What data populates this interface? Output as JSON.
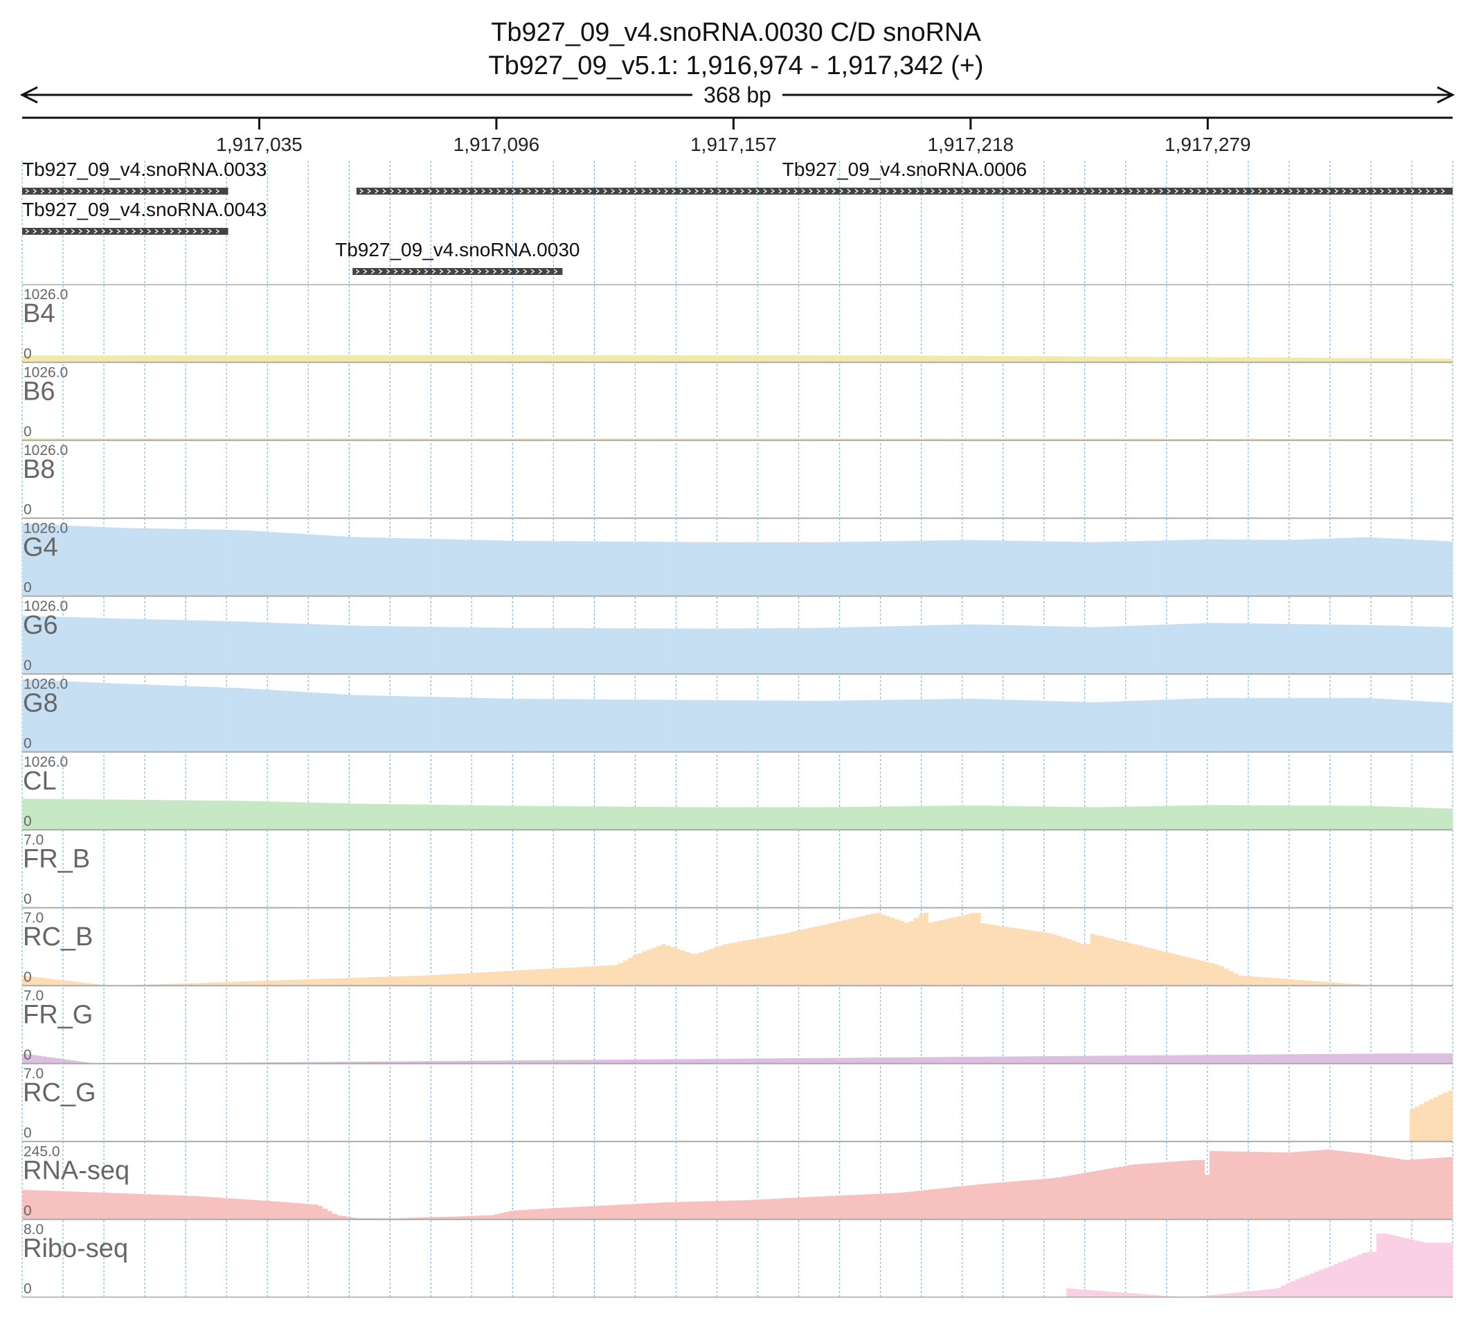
{
  "title": {
    "line1": "Tb927_09_v4.snoRNA.0030  C/D snoRNA",
    "line2": "Tb927_09_v5.1: 1,916,974 - 1,917,342 (+)"
  },
  "span_label": "368 bp",
  "colors": {
    "axis": "#111111",
    "gridline": "#5b9bd5",
    "track_separator": "#aaaaaa",
    "gene_fill": "#444444",
    "yellow": "#f3e9a6",
    "blue": "#c6dff3",
    "green": "#c7e8c4",
    "orange": "#fdddb5",
    "purple": "#dcc0e0",
    "red": "#f7c1c0",
    "pink": "#fad0e4"
  },
  "chart_data": {
    "type": "genome-browser-coverage",
    "region": {
      "start": 1916974,
      "end": 1917342,
      "strand": "+"
    },
    "ticks": [
      {
        "pos": 1917035,
        "label": "1,917,035"
      },
      {
        "pos": 1917096,
        "label": "1,917,096"
      },
      {
        "pos": 1917157,
        "label": "1,917,157"
      },
      {
        "pos": 1917218,
        "label": "1,917,218"
      },
      {
        "pos": 1917279,
        "label": "1,917,279"
      }
    ],
    "genes": [
      {
        "name": "Tb927_09_v4.snoRNA.0033",
        "start": 1916974,
        "end": 1917027,
        "row": 0,
        "label_align": "start"
      },
      {
        "name": "Tb927_09_v4.snoRNA.0006",
        "start": 1917060,
        "end": 1917342,
        "row": 0,
        "label_align": "middle"
      },
      {
        "name": "Tb927_09_v4.snoRNA.0043",
        "start": 1916974,
        "end": 1917027,
        "row": 1,
        "label_align": "start"
      },
      {
        "name": "Tb927_09_v4.snoRNA.0030",
        "start": 1917059,
        "end": 1917113,
        "row": 2,
        "label_align": "middle"
      }
    ],
    "tracks": [
      {
        "name": "B4",
        "max": "1026.0",
        "min": "0",
        "ymax": 1026,
        "color": "yellow",
        "points": [
          [
            1916974,
            100
          ],
          [
            1917100,
            105
          ],
          [
            1917200,
            100
          ],
          [
            1917300,
            70
          ],
          [
            1917342,
            55
          ]
        ]
      },
      {
        "name": "B6",
        "max": "1026.0",
        "min": "0",
        "ymax": 1026,
        "color": "yellow",
        "points": [
          [
            1916974,
            30
          ],
          [
            1917342,
            22
          ]
        ]
      },
      {
        "name": "B8",
        "max": "1026.0",
        "min": "0",
        "ymax": 1026,
        "color": "yellow",
        "points": [
          [
            1916974,
            12
          ],
          [
            1917342,
            10
          ]
        ]
      },
      {
        "name": "G4",
        "max": "1026.0",
        "min": "0",
        "ymax": 1026,
        "color": "blue",
        "points": [
          [
            1916974,
            1020
          ],
          [
            1917000,
            960
          ],
          [
            1917030,
            930
          ],
          [
            1917060,
            830
          ],
          [
            1917100,
            780
          ],
          [
            1917150,
            760
          ],
          [
            1917180,
            760
          ],
          [
            1917218,
            790
          ],
          [
            1917250,
            760
          ],
          [
            1917280,
            800
          ],
          [
            1917300,
            790
          ],
          [
            1917320,
            830
          ],
          [
            1917342,
            770
          ]
        ]
      },
      {
        "name": "G6",
        "max": "1026.0",
        "min": "0",
        "ymax": 1026,
        "color": "blue",
        "points": [
          [
            1916974,
            820
          ],
          [
            1917000,
            780
          ],
          [
            1917030,
            740
          ],
          [
            1917060,
            680
          ],
          [
            1917100,
            650
          ],
          [
            1917150,
            640
          ],
          [
            1917180,
            650
          ],
          [
            1917218,
            700
          ],
          [
            1917250,
            660
          ],
          [
            1917280,
            720
          ],
          [
            1917320,
            690
          ],
          [
            1917342,
            660
          ]
        ]
      },
      {
        "name": "G8",
        "max": "1026.0",
        "min": "0",
        "ymax": 1026,
        "color": "blue",
        "points": [
          [
            1916974,
            1020
          ],
          [
            1917000,
            960
          ],
          [
            1917030,
            900
          ],
          [
            1917060,
            800
          ],
          [
            1917100,
            750
          ],
          [
            1917150,
            730
          ],
          [
            1917180,
            720
          ],
          [
            1917218,
            750
          ],
          [
            1917250,
            700
          ],
          [
            1917280,
            760
          ],
          [
            1917320,
            760
          ],
          [
            1917342,
            690
          ]
        ]
      },
      {
        "name": "CL",
        "max": "1026.0",
        "min": "0",
        "ymax": 1026,
        "color": "green",
        "points": [
          [
            1916974,
            440
          ],
          [
            1917030,
            410
          ],
          [
            1917060,
            370
          ],
          [
            1917100,
            340
          ],
          [
            1917150,
            320
          ],
          [
            1917180,
            320
          ],
          [
            1917218,
            345
          ],
          [
            1917250,
            320
          ],
          [
            1917280,
            350
          ],
          [
            1917320,
            340
          ],
          [
            1917342,
            300
          ]
        ]
      },
      {
        "name": "FR_B",
        "max": "7.0",
        "min": "0",
        "ymax": 7,
        "color": "orange",
        "points": []
      },
      {
        "name": "RC_B",
        "max": "7.0",
        "min": "0",
        "ymax": 7,
        "color": "orange",
        "points": [
          [
            1916974,
            1
          ],
          [
            1916997,
            0
          ],
          [
            1917078,
            1
          ],
          [
            1917127,
            2
          ],
          [
            1917132,
            3
          ],
          [
            1917139,
            4
          ],
          [
            1917147,
            3
          ],
          [
            1917155,
            4
          ],
          [
            1917170,
            5
          ],
          [
            1917194,
            7
          ],
          [
            1917202,
            6
          ],
          [
            1917206,
            7
          ],
          [
            1917207,
            6
          ],
          [
            1917219,
            7
          ],
          [
            1917221,
            6
          ],
          [
            1917239,
            5
          ],
          [
            1917247,
            4
          ],
          [
            1917249,
            5
          ],
          [
            1917271,
            3
          ],
          [
            1917282,
            2
          ],
          [
            1917287,
            1
          ],
          [
            1917323,
            0
          ]
        ]
      },
      {
        "name": "FR_G",
        "max": "7.0",
        "min": "0",
        "ymax": 7,
        "color": "purple",
        "points": [
          [
            1916974,
            1
          ],
          [
            1916993,
            0
          ],
          [
            1917331,
            1
          ],
          [
            1917342,
            1
          ]
        ]
      },
      {
        "name": "RC_G",
        "max": "7.0",
        "min": "0",
        "ymax": 7,
        "color": "orange",
        "points": [
          [
            1917331,
            3
          ],
          [
            1917336,
            4
          ],
          [
            1917342,
            5
          ]
        ]
      },
      {
        "name": "RNA-seq",
        "max": "245.0",
        "min": "0",
        "ymax": 245,
        "color": "red",
        "points": [
          [
            1916974,
            100
          ],
          [
            1917000,
            88
          ],
          [
            1917020,
            78
          ],
          [
            1917040,
            60
          ],
          [
            1917050,
            50
          ],
          [
            1917055,
            15
          ],
          [
            1917060,
            5
          ],
          [
            1917070,
            4
          ],
          [
            1917078,
            8
          ],
          [
            1917085,
            10
          ],
          [
            1917095,
            15
          ],
          [
            1917100,
            30
          ],
          [
            1917110,
            38
          ],
          [
            1917125,
            48
          ],
          [
            1917140,
            58
          ],
          [
            1917160,
            65
          ],
          [
            1917180,
            78
          ],
          [
            1917200,
            90
          ],
          [
            1917220,
            118
          ],
          [
            1917240,
            140
          ],
          [
            1917260,
            185
          ],
          [
            1917276,
            200
          ],
          [
            1917278,
            150
          ],
          [
            1917280,
            230
          ],
          [
            1917300,
            225
          ],
          [
            1917310,
            235
          ],
          [
            1917320,
            220
          ],
          [
            1917330,
            200
          ],
          [
            1917342,
            210
          ]
        ]
      },
      {
        "name": "Ribo-seq",
        "max": "8.0",
        "min": "0",
        "ymax": 8,
        "color": "pink",
        "points": [
          [
            1917243,
            1
          ],
          [
            1917274,
            0
          ],
          [
            1917297,
            1
          ],
          [
            1917302,
            2
          ],
          [
            1917320,
            5
          ],
          [
            1917322,
            7
          ],
          [
            1917325,
            7
          ],
          [
            1917335,
            6
          ],
          [
            1917342,
            6
          ]
        ]
      }
    ]
  }
}
